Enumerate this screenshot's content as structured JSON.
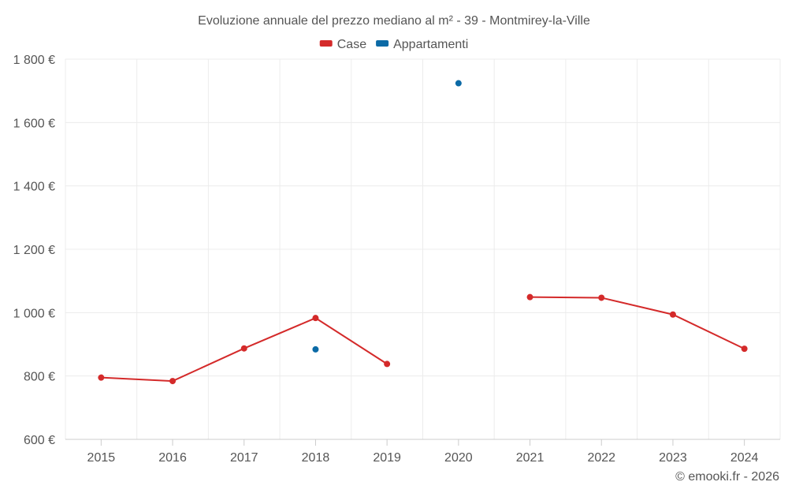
{
  "chart_data": {
    "type": "line",
    "title": "Evoluzione annuale del prezzo mediano al m² - 39 - Montmirey-la-Ville",
    "categories": [
      "2015",
      "2016",
      "2017",
      "2018",
      "2019",
      "2020",
      "2021",
      "2022",
      "2023",
      "2024"
    ],
    "y_ticks": [
      "600 €",
      "800 €",
      "1 000 €",
      "1 200 €",
      "1 400 €",
      "1 600 €",
      "1 800 €"
    ],
    "ylim": [
      600,
      1800
    ],
    "y_tick_values": [
      600,
      800,
      1000,
      1200,
      1400,
      1600,
      1800
    ],
    "xlabel": "",
    "ylabel": "",
    "legend_position": "top-center",
    "series": [
      {
        "name": "Case",
        "color": "#d42a2a",
        "values": [
          795,
          784,
          887,
          983,
          838,
          null,
          1049,
          1047,
          994,
          886
        ]
      },
      {
        "name": "Appartamenti",
        "color": "#0b6aa6",
        "values": [
          null,
          null,
          null,
          884,
          null,
          1724,
          null,
          null,
          null,
          null
        ]
      }
    ]
  },
  "credit": "© emooki.fr - 2026"
}
